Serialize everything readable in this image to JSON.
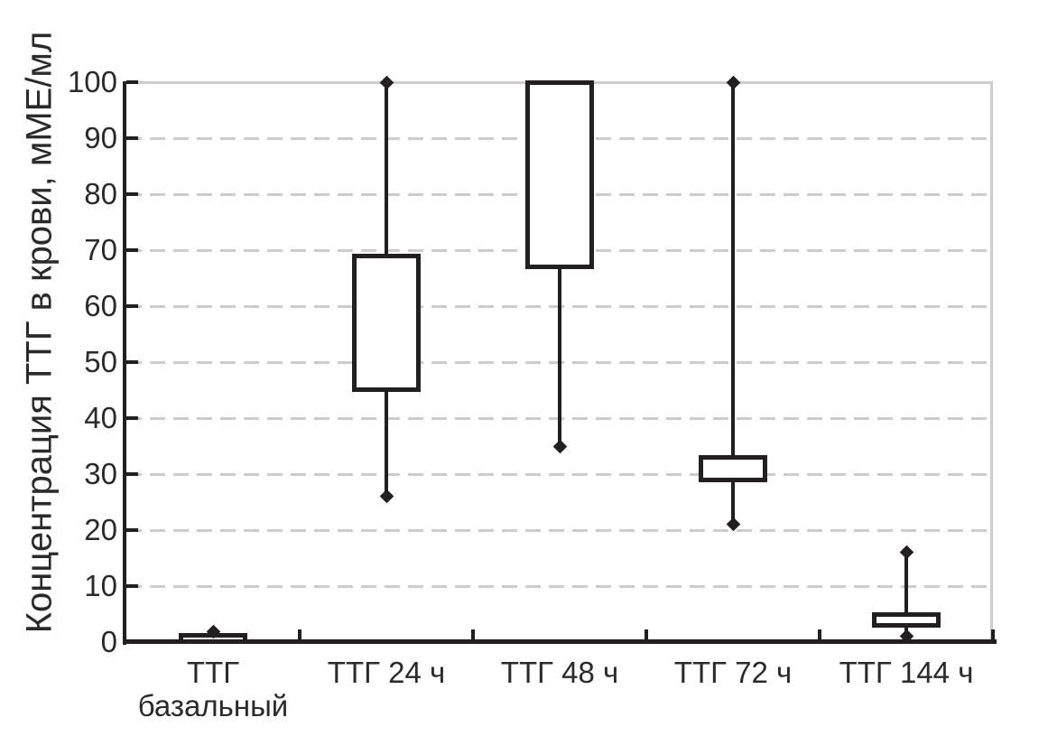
{
  "figure_type": "boxplot-figure",
  "colors": {
    "ink": "#231f20",
    "text": "#2a2a2a",
    "grid_dashed": "#cccccc",
    "grid_solid": "#cdcdcd",
    "background": "#ffffff"
  },
  "chart_data": {
    "type": "boxplot",
    "title": "",
    "xlabel": "",
    "ylabel": "Концентрация ТТГ в крови, мМЕ/мл",
    "ylim": [
      0,
      100
    ],
    "yticks": [
      0,
      10,
      20,
      30,
      40,
      50,
      60,
      70,
      80,
      90,
      100
    ],
    "grid": "horizontal dashed lines at 10-90, solid light line at 100, light right border, grid hidden behind boxes",
    "legend_position": "none",
    "median_line_visible": false,
    "whisker_end_marker": "filled diamond",
    "categories": [
      "ТТГ базальный",
      "ТТГ 24 ч",
      "ТТГ 48 ч",
      "ТТГ 72 ч",
      "ТТГ 144 ч"
    ],
    "groups": [
      {
        "label": "ТТГ базальный",
        "label_lines": [
          "ТТГ",
          "базальный"
        ],
        "whisker_low": null,
        "q1": 0,
        "q3": 1.2,
        "whisker_high": 1.8
      },
      {
        "label": "ТТГ 24 ч",
        "label_lines": [
          "ТТГ 24 ч"
        ],
        "whisker_low": 26,
        "q1": 45,
        "q3": 69,
        "whisker_high": 100
      },
      {
        "label": "ТТГ 48 ч",
        "label_lines": [
          "ТТГ 48 ч"
        ],
        "whisker_low": 35,
        "q1": 67,
        "q3": 100,
        "whisker_high": null
      },
      {
        "label": "ТТГ 72 ч",
        "label_lines": [
          "ТТГ 72 ч"
        ],
        "whisker_low": 21,
        "q1": 29,
        "q3": 33,
        "whisker_high": 100
      },
      {
        "label": "ТТГ 144 ч",
        "label_lines": [
          "ТТГ 144 ч"
        ],
        "whisker_low": 1,
        "q1": 3,
        "q3": 5,
        "whisker_high": 16
      }
    ]
  }
}
